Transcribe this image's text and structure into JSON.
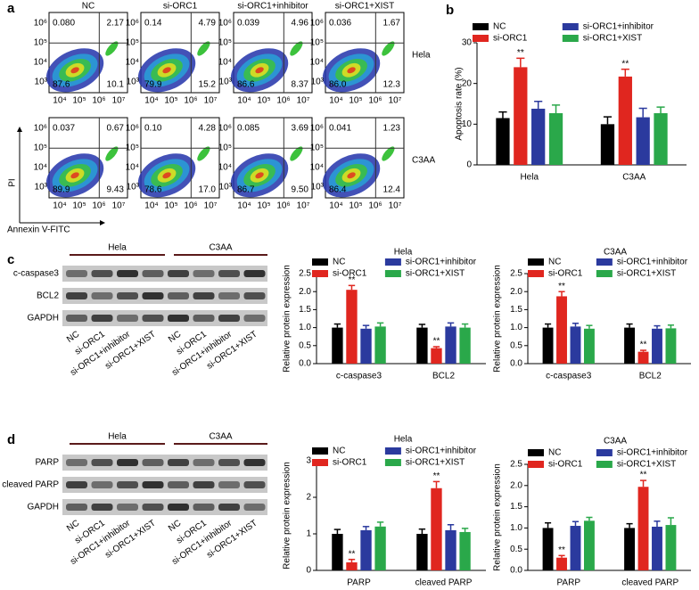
{
  "panel_labels": [
    "a",
    "b",
    "c",
    "d"
  ],
  "flow": {
    "columns": [
      "NC",
      "si-ORC1",
      "si-ORC1+inhibitor",
      "si-ORC1+XIST"
    ],
    "rows": [
      "Hela",
      "C3AA"
    ],
    "ylabel": "PI",
    "xlabel": "Annexin V-FITC",
    "xticks": [
      "10⁴",
      "10⁵",
      "10⁶",
      "10⁷"
    ],
    "yticks": [
      "10³",
      "10⁴",
      "10⁵",
      "10⁶"
    ],
    "quadrants": [
      [
        [
          "0.080",
          "2.17",
          "87.6",
          "10.1"
        ],
        [
          "0.14",
          "4.79",
          "79.9",
          "15.2"
        ],
        [
          "0.039",
          "4.96",
          "86.6",
          "8.37"
        ],
        [
          "0.036",
          "1.67",
          "86.0",
          "12.3"
        ]
      ],
      [
        [
          "0.037",
          "0.67",
          "89.9",
          "9.43"
        ],
        [
          "0.10",
          "4.28",
          "78.6",
          "17.0"
        ],
        [
          "0.085",
          "3.69",
          "86.7",
          "9.50"
        ],
        [
          "0.041",
          "1.23",
          "86.4",
          "12.4"
        ]
      ]
    ]
  },
  "blots": [
    {
      "groups": [
        "Hela",
        "C3AA"
      ],
      "rows": [
        "c-caspase3",
        "BCL2",
        "GAPDH"
      ],
      "lanes": [
        "NC",
        "si-ORC1",
        "si-ORC1+inhibitor",
        "si-ORC1+XIST"
      ]
    },
    {
      "groups": [
        "Hela",
        "C3AA"
      ],
      "rows": [
        "PARP",
        "cleaved PARP",
        "GAPDH"
      ],
      "lanes": [
        "NC",
        "si-ORC1",
        "si-ORC1+inhibitor",
        "si-ORC1+XIST"
      ]
    }
  ],
  "chart_data": [
    {
      "type": "bar",
      "ylabel": "Apoptosis rate (%)",
      "categories": [
        "Hela",
        "C3AA"
      ],
      "ylim": [
        0,
        30
      ],
      "yticks": [
        0,
        10,
        20,
        30
      ],
      "series": [
        {
          "name": "NC",
          "color": "#000000",
          "values": [
            11.5,
            10.0
          ],
          "errors": [
            1.5,
            1.8
          ]
        },
        {
          "name": "si-ORC1",
          "color": "#e0261f",
          "values": [
            24.0,
            21.7
          ],
          "errors": [
            2.2,
            1.8
          ],
          "significance": [
            "**",
            "**"
          ]
        },
        {
          "name": "si-ORC1+inhibitor",
          "color": "#2b3a9e",
          "values": [
            13.8,
            11.7
          ],
          "errors": [
            1.8,
            2.2
          ]
        },
        {
          "name": "si-ORC1+XIST",
          "color": "#2aa84a",
          "values": [
            12.7,
            12.7
          ],
          "errors": [
            2.0,
            1.5
          ]
        }
      ]
    },
    {
      "type": "bar",
      "title": "Hela",
      "ylabel": "Relative protein expression",
      "categories": [
        "c-caspase3",
        "BCL2"
      ],
      "ylim": [
        0,
        2.5
      ],
      "yticks": [
        {
          "value": 0,
          "label": "0.0"
        },
        0.5,
        {
          "value": 1,
          "label": "1.0"
        },
        1.5,
        {
          "value": 2,
          "label": "2.0"
        },
        2.5
      ],
      "series": [
        {
          "name": "NC",
          "color": "#000000",
          "values": [
            1.0,
            1.0
          ],
          "errors": [
            0.1,
            0.09
          ]
        },
        {
          "name": "si-ORC1",
          "color": "#e0261f",
          "values": [
            2.05,
            0.43
          ],
          "errors": [
            0.12,
            0.04
          ],
          "significance": [
            "**",
            "**"
          ]
        },
        {
          "name": "si-ORC1+inhibitor",
          "color": "#2b3a9e",
          "values": [
            0.97,
            1.03
          ],
          "errors": [
            0.09,
            0.1
          ]
        },
        {
          "name": "si-ORC1+XIST",
          "color": "#2aa84a",
          "values": [
            1.03,
            1.0
          ],
          "errors": [
            0.1,
            0.1
          ]
        }
      ]
    },
    {
      "type": "bar",
      "title": "C3AA",
      "ylabel": "Relative protein expression",
      "categories": [
        "c-caspase3",
        "BCL2"
      ],
      "ylim": [
        0,
        2.5
      ],
      "yticks": [
        {
          "value": 0,
          "label": "0.0"
        },
        0.5,
        {
          "value": 1,
          "label": "1.0"
        },
        1.5,
        {
          "value": 2,
          "label": "2.0"
        },
        2.5
      ],
      "series": [
        {
          "name": "NC",
          "color": "#000000",
          "values": [
            1.0,
            1.0
          ],
          "errors": [
            0.1,
            0.1
          ]
        },
        {
          "name": "si-ORC1",
          "color": "#e0261f",
          "values": [
            1.87,
            0.33
          ],
          "errors": [
            0.13,
            0.04
          ],
          "significance": [
            "**",
            "**"
          ]
        },
        {
          "name": "si-ORC1+inhibitor",
          "color": "#2b3a9e",
          "values": [
            1.03,
            0.97
          ],
          "errors": [
            0.09,
            0.08
          ]
        },
        {
          "name": "si-ORC1+XIST",
          "color": "#2aa84a",
          "values": [
            0.97,
            0.98
          ],
          "errors": [
            0.09,
            0.09
          ]
        }
      ]
    },
    {
      "type": "bar",
      "title": "Hela",
      "ylabel": "Relative protein expression",
      "categories": [
        "PARP",
        "cleaved PARP"
      ],
      "ylim": [
        0,
        3
      ],
      "yticks": [
        0,
        1,
        2,
        3
      ],
      "series": [
        {
          "name": "NC",
          "color": "#000000",
          "values": [
            1.0,
            1.0
          ],
          "errors": [
            0.12,
            0.13
          ]
        },
        {
          "name": "si-ORC1",
          "color": "#e0261f",
          "values": [
            0.22,
            2.25
          ],
          "errors": [
            0.08,
            0.18
          ],
          "significance": [
            "**",
            "**"
          ]
        },
        {
          "name": "si-ORC1+inhibitor",
          "color": "#2b3a9e",
          "values": [
            1.1,
            1.1
          ],
          "errors": [
            0.1,
            0.15
          ]
        },
        {
          "name": "si-ORC1+XIST",
          "color": "#2aa84a",
          "values": [
            1.2,
            1.05
          ],
          "errors": [
            0.12,
            0.1
          ]
        }
      ]
    },
    {
      "type": "bar",
      "title": "C3AA",
      "ylabel": "Relative protein expression",
      "categories": [
        "PARP",
        "cleaved PARP"
      ],
      "ylim": [
        0,
        2.5
      ],
      "yticks": [
        {
          "value": 0,
          "label": "0.0"
        },
        0.5,
        {
          "value": 1,
          "label": "1.0"
        },
        1.5,
        {
          "value": 2,
          "label": "2.0"
        },
        2.5
      ],
      "series": [
        {
          "name": "NC",
          "color": "#000000",
          "values": [
            1.0,
            1.0
          ],
          "errors": [
            0.12,
            0.1
          ]
        },
        {
          "name": "si-ORC1",
          "color": "#e0261f",
          "values": [
            0.3,
            1.97
          ],
          "errors": [
            0.05,
            0.15
          ],
          "significance": [
            "**",
            "**"
          ]
        },
        {
          "name": "si-ORC1+inhibitor",
          "color": "#2b3a9e",
          "values": [
            1.05,
            1.03
          ],
          "errors": [
            0.1,
            0.13
          ]
        },
        {
          "name": "si-ORC1+XIST",
          "color": "#2aa84a",
          "values": [
            1.17,
            1.07
          ],
          "errors": [
            0.08,
            0.17
          ]
        }
      ]
    }
  ]
}
